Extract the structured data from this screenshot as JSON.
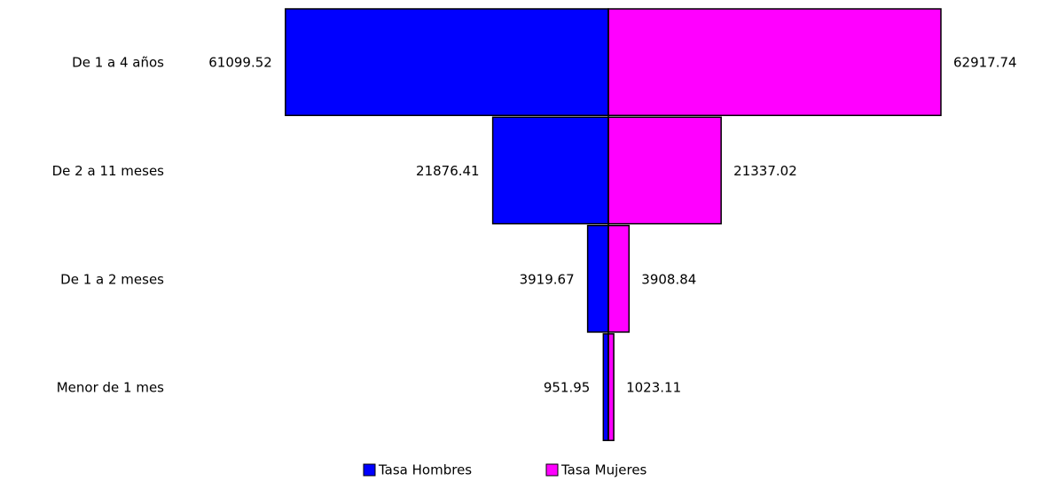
{
  "chart_data": {
    "type": "pyramid",
    "categories": [
      "De 1 a 4 años",
      "De 2 a 11 meses",
      "De 1 a 2 meses",
      "Menor de 1 mes"
    ],
    "series": [
      {
        "name": "Tasa Hombres",
        "color": "#0000ff",
        "values": [
          61099.52,
          21876.41,
          3919.67,
          951.95
        ]
      },
      {
        "name": "Tasa Mujeres",
        "color": "#ff00ff",
        "values": [
          62917.74,
          21337.02,
          3908.84,
          1023.11
        ]
      }
    ],
    "legend": "bottom"
  }
}
